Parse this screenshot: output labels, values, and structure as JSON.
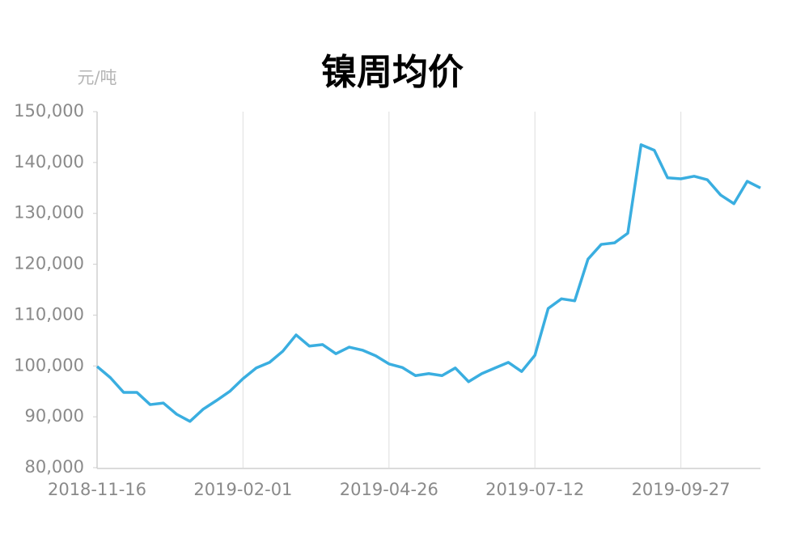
{
  "chart_data": {
    "type": "line",
    "title": "镍周均价",
    "y_label": "元/吨",
    "categories": [
      "2018-11-16",
      null,
      null,
      null,
      null,
      null,
      null,
      null,
      null,
      null,
      null,
      "2019-02-01",
      null,
      null,
      null,
      null,
      null,
      null,
      null,
      null,
      null,
      null,
      "2019-04-26",
      null,
      null,
      null,
      null,
      null,
      null,
      null,
      null,
      null,
      null,
      "2019-07-12",
      null,
      null,
      null,
      null,
      null,
      null,
      null,
      null,
      null,
      null,
      "2019-09-27",
      null,
      null,
      null,
      null,
      null,
      null
    ],
    "series": [
      {
        "name": "镍周均价",
        "color": "#3aaee0",
        "values": [
          99900,
          97700,
          94800,
          94800,
          92400,
          92700,
          90500,
          89100,
          91500,
          93200,
          95000,
          97500,
          99600,
          100700,
          102900,
          106100,
          103900,
          104200,
          102400,
          103700,
          103100,
          102000,
          100400,
          99700,
          98100,
          98500,
          98100,
          99600,
          96900,
          98500,
          99600,
          100700,
          98900,
          102100,
          111300,
          113200,
          112800,
          121000,
          123900,
          124200,
          126100,
          143500,
          142400,
          137000,
          136800,
          137300,
          136600,
          133600,
          131900,
          136300,
          135000
        ]
      }
    ],
    "ylim": [
      80000,
      150000
    ],
    "yticks": [
      {
        "value": 80000,
        "label": "80,000"
      },
      {
        "value": 90000,
        "label": "90,000"
      },
      {
        "value": 100000,
        "label": "100,000"
      },
      {
        "value": 110000,
        "label": "110,000"
      },
      {
        "value": 120000,
        "label": "120,000"
      },
      {
        "value": 130000,
        "label": "130,000"
      },
      {
        "value": 140000,
        "label": "140,000"
      },
      {
        "value": 150000,
        "label": "150,000"
      }
    ],
    "grid": true
  }
}
